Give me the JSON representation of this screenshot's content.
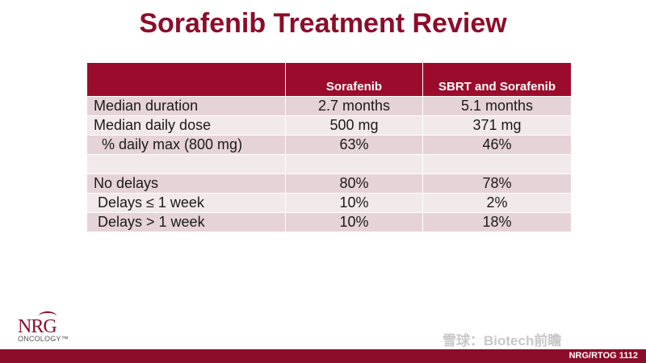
{
  "title": "Sorafenib Treatment Review",
  "table": {
    "headers": [
      "",
      "Sorafenib",
      "SBRT and Sorafenib"
    ],
    "rows": [
      [
        "Median duration",
        "2.7 months",
        "5.1 months"
      ],
      [
        "Median daily dose",
        "500 mg",
        "371 mg"
      ],
      [
        "% daily max (800 mg)",
        "63%",
        "46%"
      ],
      [
        "",
        "",
        ""
      ],
      [
        "No delays",
        "80%",
        "78%"
      ],
      [
        "Delays ≤ 1 week",
        "10%",
        "2%"
      ],
      [
        "Delays > 1 week",
        "10%",
        "18%"
      ]
    ]
  },
  "logo": {
    "name": "NRG",
    "subtitle": "ONCOLOGY™"
  },
  "watermark": "雪球：Biotech前瞻",
  "footer": {
    "label": "NRG/RTOG 1112"
  },
  "colors": {
    "brand": "#8b0d2a",
    "header": "#9b0c2c",
    "row_odd": "#e6d3d7",
    "row_even": "#f2e9eb"
  }
}
